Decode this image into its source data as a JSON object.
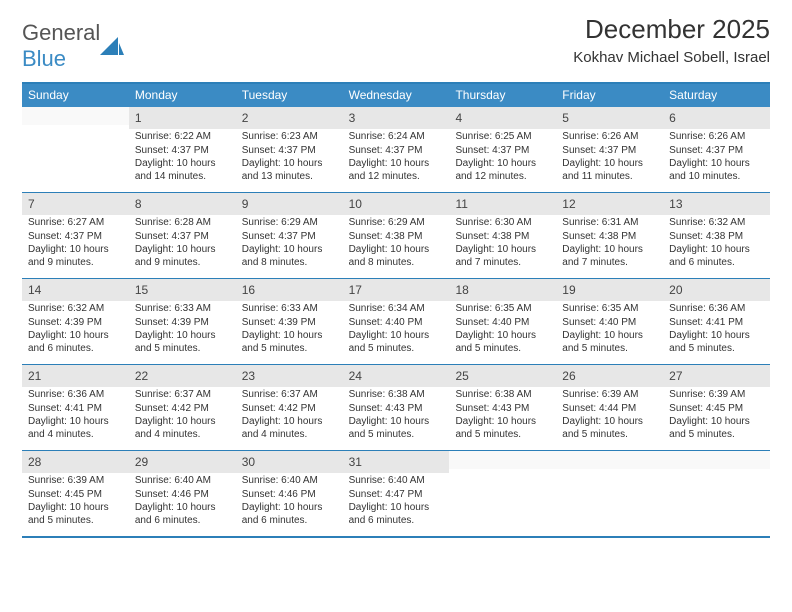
{
  "brand": {
    "part1": "General",
    "part2": "Blue"
  },
  "title": "December 2025",
  "location": "Kokhav Michael Sobell, Israel",
  "colors": {
    "header_bg": "#3b8bc4",
    "border": "#2c7fb8",
    "daynum_bg": "#e7e7e7",
    "text": "#333333"
  },
  "days_of_week": [
    "Sunday",
    "Monday",
    "Tuesday",
    "Wednesday",
    "Thursday",
    "Friday",
    "Saturday"
  ],
  "weeks": [
    [
      null,
      {
        "n": "1",
        "sr": "Sunrise: 6:22 AM",
        "ss": "Sunset: 4:37 PM",
        "dl": "Daylight: 10 hours and 14 minutes."
      },
      {
        "n": "2",
        "sr": "Sunrise: 6:23 AM",
        "ss": "Sunset: 4:37 PM",
        "dl": "Daylight: 10 hours and 13 minutes."
      },
      {
        "n": "3",
        "sr": "Sunrise: 6:24 AM",
        "ss": "Sunset: 4:37 PM",
        "dl": "Daylight: 10 hours and 12 minutes."
      },
      {
        "n": "4",
        "sr": "Sunrise: 6:25 AM",
        "ss": "Sunset: 4:37 PM",
        "dl": "Daylight: 10 hours and 12 minutes."
      },
      {
        "n": "5",
        "sr": "Sunrise: 6:26 AM",
        "ss": "Sunset: 4:37 PM",
        "dl": "Daylight: 10 hours and 11 minutes."
      },
      {
        "n": "6",
        "sr": "Sunrise: 6:26 AM",
        "ss": "Sunset: 4:37 PM",
        "dl": "Daylight: 10 hours and 10 minutes."
      }
    ],
    [
      {
        "n": "7",
        "sr": "Sunrise: 6:27 AM",
        "ss": "Sunset: 4:37 PM",
        "dl": "Daylight: 10 hours and 9 minutes."
      },
      {
        "n": "8",
        "sr": "Sunrise: 6:28 AM",
        "ss": "Sunset: 4:37 PM",
        "dl": "Daylight: 10 hours and 9 minutes."
      },
      {
        "n": "9",
        "sr": "Sunrise: 6:29 AM",
        "ss": "Sunset: 4:37 PM",
        "dl": "Daylight: 10 hours and 8 minutes."
      },
      {
        "n": "10",
        "sr": "Sunrise: 6:29 AM",
        "ss": "Sunset: 4:38 PM",
        "dl": "Daylight: 10 hours and 8 minutes."
      },
      {
        "n": "11",
        "sr": "Sunrise: 6:30 AM",
        "ss": "Sunset: 4:38 PM",
        "dl": "Daylight: 10 hours and 7 minutes."
      },
      {
        "n": "12",
        "sr": "Sunrise: 6:31 AM",
        "ss": "Sunset: 4:38 PM",
        "dl": "Daylight: 10 hours and 7 minutes."
      },
      {
        "n": "13",
        "sr": "Sunrise: 6:32 AM",
        "ss": "Sunset: 4:38 PM",
        "dl": "Daylight: 10 hours and 6 minutes."
      }
    ],
    [
      {
        "n": "14",
        "sr": "Sunrise: 6:32 AM",
        "ss": "Sunset: 4:39 PM",
        "dl": "Daylight: 10 hours and 6 minutes."
      },
      {
        "n": "15",
        "sr": "Sunrise: 6:33 AM",
        "ss": "Sunset: 4:39 PM",
        "dl": "Daylight: 10 hours and 5 minutes."
      },
      {
        "n": "16",
        "sr": "Sunrise: 6:33 AM",
        "ss": "Sunset: 4:39 PM",
        "dl": "Daylight: 10 hours and 5 minutes."
      },
      {
        "n": "17",
        "sr": "Sunrise: 6:34 AM",
        "ss": "Sunset: 4:40 PM",
        "dl": "Daylight: 10 hours and 5 minutes."
      },
      {
        "n": "18",
        "sr": "Sunrise: 6:35 AM",
        "ss": "Sunset: 4:40 PM",
        "dl": "Daylight: 10 hours and 5 minutes."
      },
      {
        "n": "19",
        "sr": "Sunrise: 6:35 AM",
        "ss": "Sunset: 4:40 PM",
        "dl": "Daylight: 10 hours and 5 minutes."
      },
      {
        "n": "20",
        "sr": "Sunrise: 6:36 AM",
        "ss": "Sunset: 4:41 PM",
        "dl": "Daylight: 10 hours and 5 minutes."
      }
    ],
    [
      {
        "n": "21",
        "sr": "Sunrise: 6:36 AM",
        "ss": "Sunset: 4:41 PM",
        "dl": "Daylight: 10 hours and 4 minutes."
      },
      {
        "n": "22",
        "sr": "Sunrise: 6:37 AM",
        "ss": "Sunset: 4:42 PM",
        "dl": "Daylight: 10 hours and 4 minutes."
      },
      {
        "n": "23",
        "sr": "Sunrise: 6:37 AM",
        "ss": "Sunset: 4:42 PM",
        "dl": "Daylight: 10 hours and 4 minutes."
      },
      {
        "n": "24",
        "sr": "Sunrise: 6:38 AM",
        "ss": "Sunset: 4:43 PM",
        "dl": "Daylight: 10 hours and 5 minutes."
      },
      {
        "n": "25",
        "sr": "Sunrise: 6:38 AM",
        "ss": "Sunset: 4:43 PM",
        "dl": "Daylight: 10 hours and 5 minutes."
      },
      {
        "n": "26",
        "sr": "Sunrise: 6:39 AM",
        "ss": "Sunset: 4:44 PM",
        "dl": "Daylight: 10 hours and 5 minutes."
      },
      {
        "n": "27",
        "sr": "Sunrise: 6:39 AM",
        "ss": "Sunset: 4:45 PM",
        "dl": "Daylight: 10 hours and 5 minutes."
      }
    ],
    [
      {
        "n": "28",
        "sr": "Sunrise: 6:39 AM",
        "ss": "Sunset: 4:45 PM",
        "dl": "Daylight: 10 hours and 5 minutes."
      },
      {
        "n": "29",
        "sr": "Sunrise: 6:40 AM",
        "ss": "Sunset: 4:46 PM",
        "dl": "Daylight: 10 hours and 6 minutes."
      },
      {
        "n": "30",
        "sr": "Sunrise: 6:40 AM",
        "ss": "Sunset: 4:46 PM",
        "dl": "Daylight: 10 hours and 6 minutes."
      },
      {
        "n": "31",
        "sr": "Sunrise: 6:40 AM",
        "ss": "Sunset: 4:47 PM",
        "dl": "Daylight: 10 hours and 6 minutes."
      },
      null,
      null,
      null
    ]
  ]
}
